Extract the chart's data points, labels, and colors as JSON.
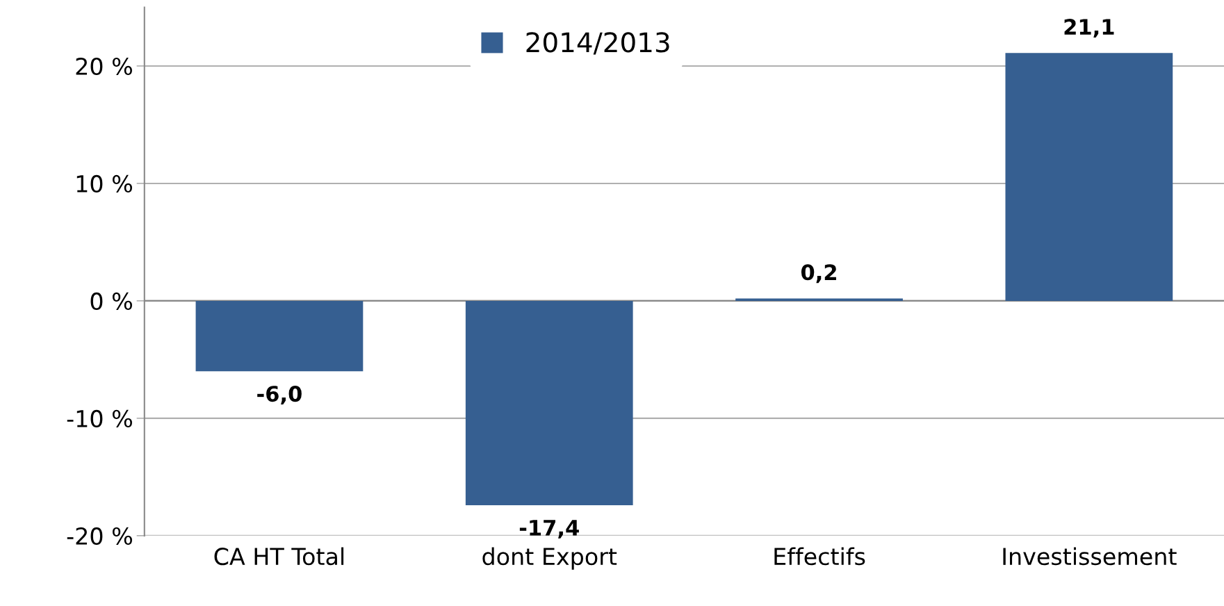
{
  "chart_data": {
    "type": "bar",
    "categories": [
      "CA HT Total",
      "dont Export",
      "Effectifs",
      "Investissement"
    ],
    "series": [
      {
        "name": "2014/2013",
        "color": "#365f91",
        "values": [
          -6.0,
          -17.4,
          0.2,
          21.1
        ]
      }
    ],
    "value_labels": [
      "-6,0",
      "-17,4",
      "0,2",
      "21,1"
    ],
    "ylim": [
      -20,
      25
    ],
    "yticks": [
      {
        "value": -20,
        "label": "-20 %"
      },
      {
        "value": -10,
        "label": "-10 %"
      },
      {
        "value": 0,
        "label": "0 %"
      },
      {
        "value": 10,
        "label": "10 %"
      },
      {
        "value": 20,
        "label": "20 %"
      }
    ],
    "grid": "y",
    "legend": "top"
  }
}
